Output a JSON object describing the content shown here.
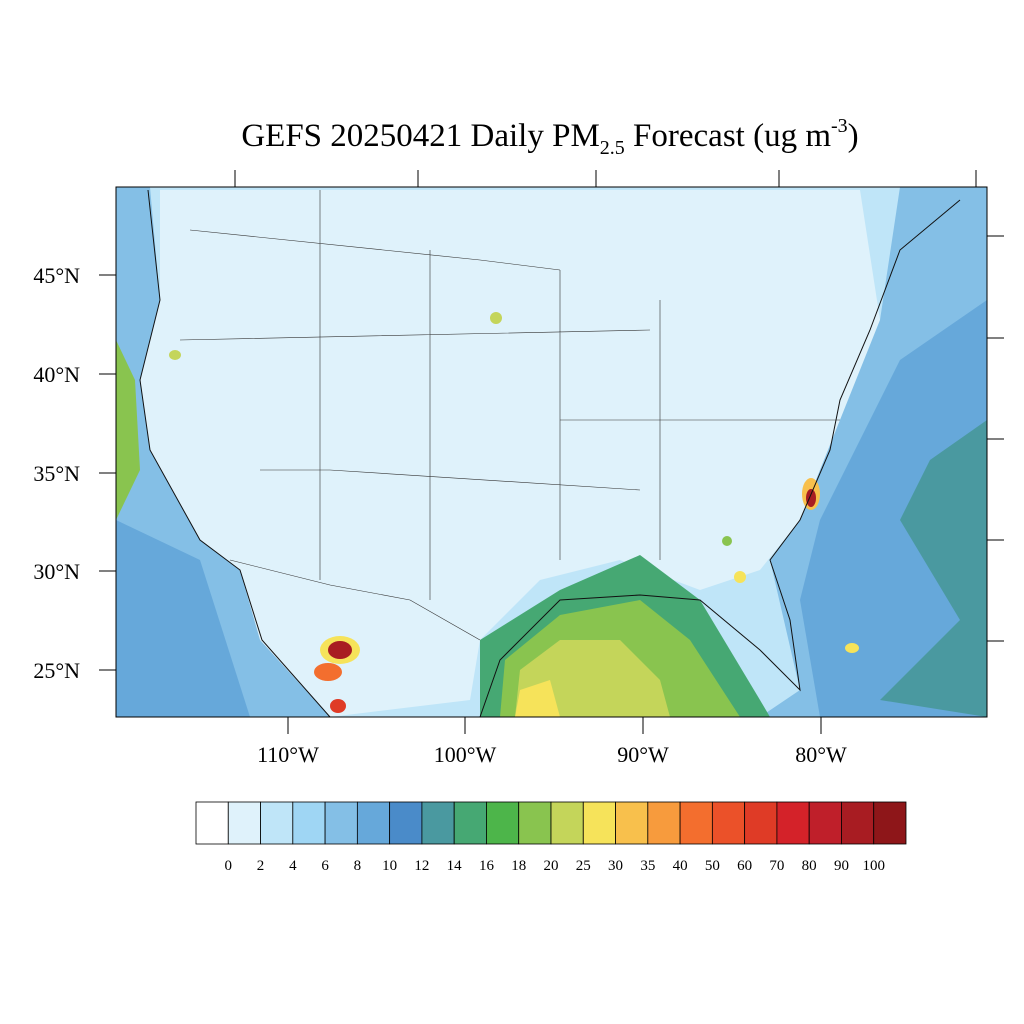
{
  "title": {
    "text": "GEFS 20250421 Daily PM",
    "subscript": "2.5",
    "units": " Forecast (ug m",
    "superscript": "-3",
    "close": ")"
  },
  "lat_labels": [
    "45°N",
    "40°N",
    "35°N",
    "30°N",
    "25°N"
  ],
  "lon_labels": [
    "110°W",
    "100°W",
    "90°W",
    "80°W"
  ],
  "colorbar": {
    "levels": [
      0,
      2,
      4,
      6,
      8,
      10,
      12,
      14,
      16,
      18,
      20,
      25,
      30,
      35,
      40,
      50,
      60,
      70,
      80,
      90,
      100
    ],
    "colors": [
      "#ffffff",
      "#dff2fb",
      "#bfe5f8",
      "#9fd6f4",
      "#84bfe6",
      "#66a8da",
      "#4a8bc9",
      "#4a99a0",
      "#46a873",
      "#4db54a",
      "#89c44f",
      "#c4d55a",
      "#f6e35a",
      "#f8c04c",
      "#f79b3d",
      "#f36e2e",
      "#eb5129",
      "#df3b26",
      "#d42229",
      "#bf1f2a",
      "#a81c22",
      "#8e1619"
    ]
  }
}
